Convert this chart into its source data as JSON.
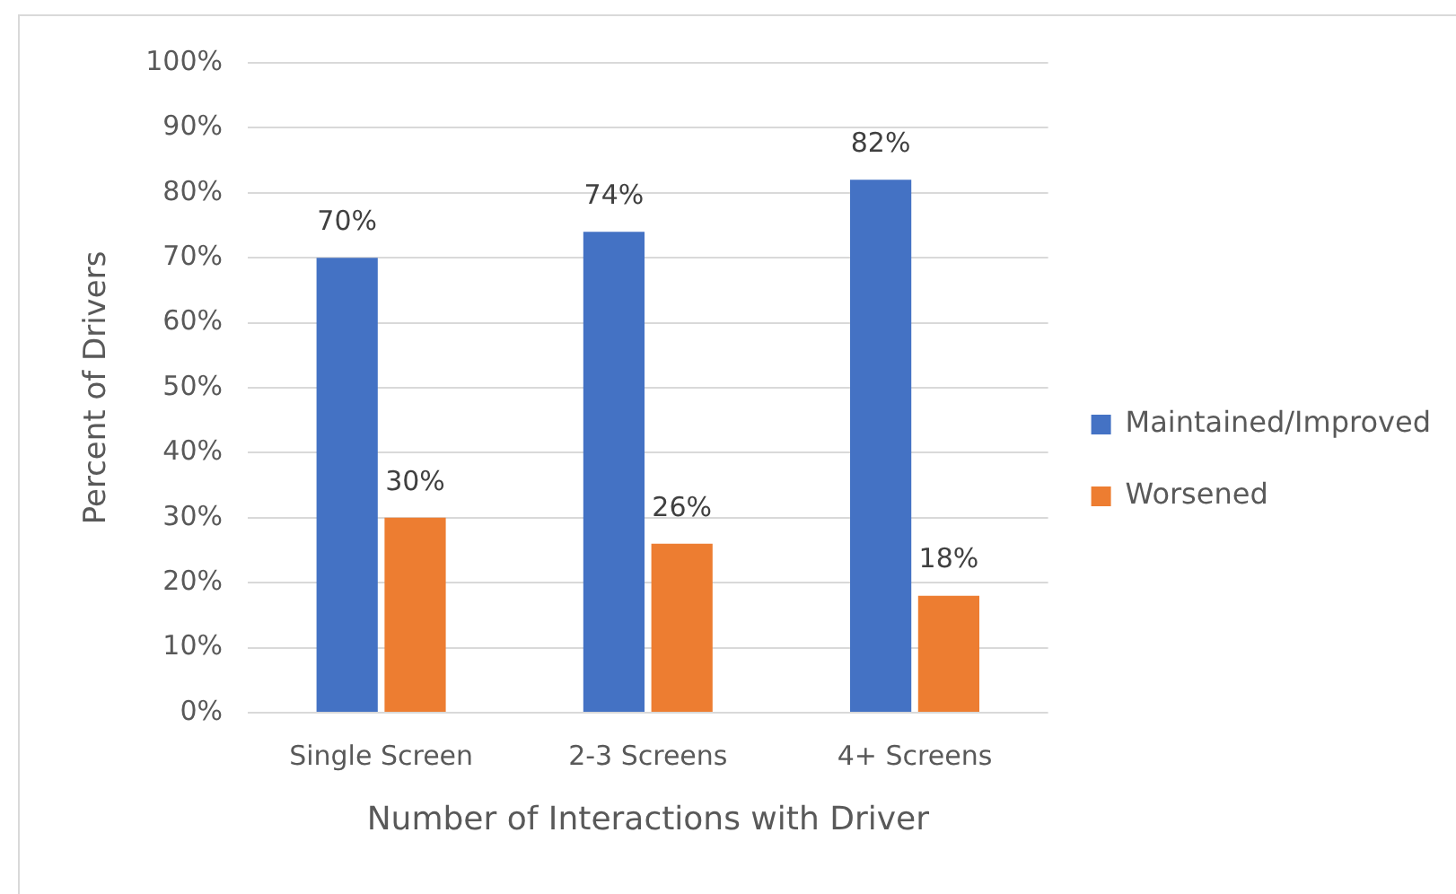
{
  "chart_data": {
    "type": "bar",
    "xlabel": "Number of Interactions with Driver",
    "ylabel": "Percent of Drivers",
    "categories": [
      "Single Screen",
      "2-3 Screens",
      "4+ Screens"
    ],
    "series": [
      {
        "name": "Maintained/Improved",
        "color": "#4472c4",
        "values": [
          70,
          74,
          82
        ],
        "value_labels": [
          "70%",
          "74%",
          "82%"
        ]
      },
      {
        "name": "Worsened",
        "color": "#ed7d31",
        "values": [
          30,
          26,
          18
        ],
        "value_labels": [
          "30%",
          "26%",
          "18%"
        ]
      }
    ],
    "ylim": [
      0,
      100
    ],
    "yticks": [
      {
        "value": 0,
        "label": "0%"
      },
      {
        "value": 10,
        "label": "10%"
      },
      {
        "value": 20,
        "label": "20%"
      },
      {
        "value": 30,
        "label": "30%"
      },
      {
        "value": 40,
        "label": "40%"
      },
      {
        "value": 50,
        "label": "50%"
      },
      {
        "value": 60,
        "label": "60%"
      },
      {
        "value": 70,
        "label": "70%"
      },
      {
        "value": 80,
        "label": "80%"
      },
      {
        "value": 90,
        "label": "90%"
      },
      {
        "value": 100,
        "label": "100%"
      }
    ],
    "grid": "y",
    "legend": "right"
  }
}
